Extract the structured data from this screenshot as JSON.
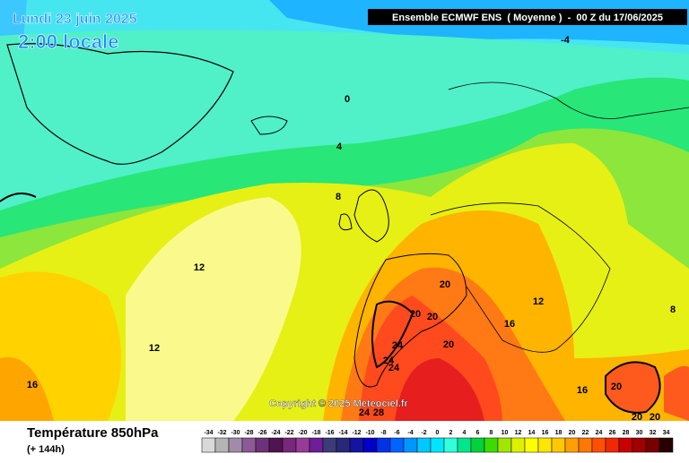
{
  "header": {
    "date": "Lundi 23 juin 2025",
    "time": "2:00 locale",
    "model": "Ensemble ECMWF ENS  ( Moyenne )  -  00 Z du 17/06/2025"
  },
  "map": {
    "contour_labels": [
      -4,
      0,
      4,
      8,
      8,
      12,
      12,
      12,
      16,
      16,
      16,
      20,
      20,
      20,
      20,
      20,
      20,
      20,
      24,
      24,
      24,
      24,
      28
    ],
    "copyright": "Copyright © 2025 Meteociel.fr"
  },
  "footer": {
    "title": "Température 850hPa",
    "subtitle": "(+ 144h)"
  },
  "legend": [
    {
      "value": -34,
      "color": "#d9d9d9"
    },
    {
      "value": -32,
      "color": "#b4b4b4"
    },
    {
      "value": -30,
      "color": "#a08ca8"
    },
    {
      "value": -28,
      "color": "#8c5a96"
    },
    {
      "value": -26,
      "color": "#6e3278"
    },
    {
      "value": -24,
      "color": "#501450"
    },
    {
      "value": -22,
      "color": "#782878"
    },
    {
      "value": -20,
      "color": "#963c96"
    },
    {
      "value": -18,
      "color": "#6e1e96"
    },
    {
      "value": -16,
      "color": "#3c3c78"
    },
    {
      "value": -14,
      "color": "#28287a"
    },
    {
      "value": -12,
      "color": "#1414a0"
    },
    {
      "value": -10,
      "color": "#0000c8"
    },
    {
      "value": -8,
      "color": "#0032e6"
    },
    {
      "value": -6,
      "color": "#0064ff"
    },
    {
      "value": -4,
      "color": "#0096ff"
    },
    {
      "value": -2,
      "color": "#00c8ff"
    },
    {
      "value": 0,
      "color": "#00e6ff"
    },
    {
      "value": 2,
      "color": "#32ffdc"
    },
    {
      "value": 4,
      "color": "#00e68c"
    },
    {
      "value": 6,
      "color": "#00d23c"
    },
    {
      "value": 8,
      "color": "#3cdc00"
    },
    {
      "value": 10,
      "color": "#a0e600"
    },
    {
      "value": 12,
      "color": "#dcf000"
    },
    {
      "value": 14,
      "color": "#ffff00"
    },
    {
      "value": 16,
      "color": "#ffe600"
    },
    {
      "value": 18,
      "color": "#ffc800"
    },
    {
      "value": 20,
      "color": "#ffa000"
    },
    {
      "value": 22,
      "color": "#ff7800"
    },
    {
      "value": 24,
      "color": "#ff5000"
    },
    {
      "value": 26,
      "color": "#f02800"
    },
    {
      "value": 28,
      "color": "#c80000"
    },
    {
      "value": 30,
      "color": "#a00000"
    },
    {
      "value": 32,
      "color": "#780000"
    },
    {
      "value": 34,
      "color": "#280000"
    }
  ]
}
